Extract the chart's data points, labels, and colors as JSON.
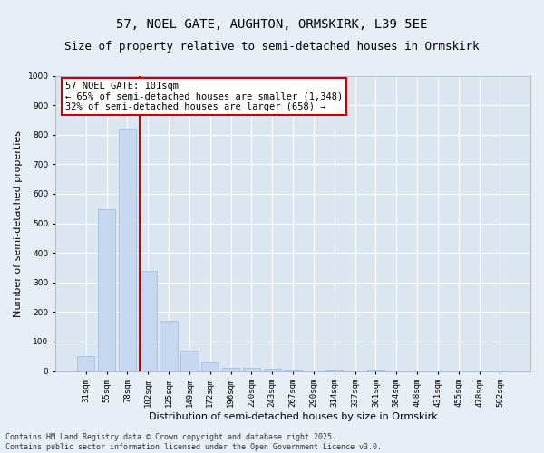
{
  "title_line1": "57, NOEL GATE, AUGHTON, ORMSKIRK, L39 5EE",
  "title_line2": "Size of property relative to semi-detached houses in Ormskirk",
  "xlabel": "Distribution of semi-detached houses by size in Ormskirk",
  "ylabel": "Number of semi-detached properties",
  "categories": [
    "31sqm",
    "55sqm",
    "78sqm",
    "102sqm",
    "125sqm",
    "149sqm",
    "172sqm",
    "196sqm",
    "220sqm",
    "243sqm",
    "267sqm",
    "290sqm",
    "314sqm",
    "337sqm",
    "361sqm",
    "384sqm",
    "408sqm",
    "431sqm",
    "455sqm",
    "478sqm",
    "502sqm"
  ],
  "values": [
    52,
    548,
    820,
    338,
    170,
    68,
    28,
    12,
    11,
    7,
    6,
    0,
    5,
    0,
    4,
    0,
    0,
    0,
    0,
    0,
    0
  ],
  "bar_color": "#c5d8f0",
  "bar_edgecolor": "#a0b8d8",
  "highlight_index": 3,
  "highlight_line_color": "#cc0000",
  "annotation_text": "57 NOEL GATE: 101sqm\n← 65% of semi-detached houses are smaller (1,348)\n32% of semi-detached houses are larger (658) →",
  "annotation_box_color": "#ffffff",
  "annotation_box_edgecolor": "#cc0000",
  "ylim": [
    0,
    1000
  ],
  "yticks": [
    0,
    100,
    200,
    300,
    400,
    500,
    600,
    700,
    800,
    900,
    1000
  ],
  "footer": "Contains HM Land Registry data © Crown copyright and database right 2025.\nContains public sector information licensed under the Open Government Licence v3.0.",
  "background_color": "#e8eef5",
  "plot_background_color": "#dce6f0",
  "grid_color": "#ffffff",
  "title_fontsize": 10,
  "subtitle_fontsize": 9,
  "axis_label_fontsize": 8,
  "tick_fontsize": 6.5,
  "annotation_fontsize": 7.5,
  "footer_fontsize": 6
}
